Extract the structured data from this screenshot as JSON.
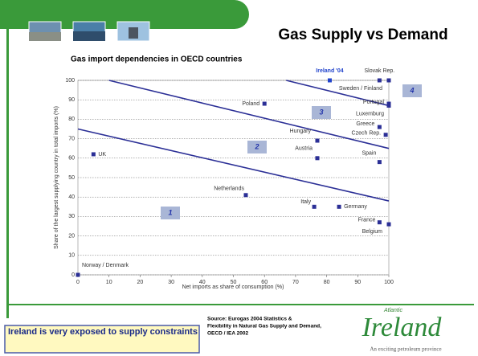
{
  "title": "Gas Supply vs Demand",
  "chart_data": {
    "type": "scatter",
    "title": "Gas import dependencies in OECD countries",
    "x_label": "Net imports as share of consumption (%)",
    "y_label": "Share of the largest supplying country in total imports (%)",
    "xlim": [
      0,
      100
    ],
    "ylim": [
      0,
      100
    ],
    "xticks": [
      0,
      10,
      20,
      30,
      40,
      50,
      60,
      70,
      80,
      90,
      100
    ],
    "yticks": [
      0,
      10,
      20,
      30,
      40,
      50,
      60,
      70,
      80,
      90,
      100
    ],
    "grid": true,
    "color": "#2b2f96",
    "highlight_color": "#2244cc",
    "line_color": "#2b2f96",
    "points": [
      {
        "label": "Norway / Denmark",
        "x": 0,
        "y": 0
      },
      {
        "label": "UK",
        "x": 5,
        "y": 62
      },
      {
        "label": "Poland",
        "x": 60,
        "y": 88
      },
      {
        "label": "Hungary",
        "x": 77,
        "y": 69
      },
      {
        "label": "Austria",
        "x": 77,
        "y": 60
      },
      {
        "label": "Netherlands",
        "x": 54,
        "y": 41
      },
      {
        "label": "Italy",
        "x": 76,
        "y": 35
      },
      {
        "label": "Germany",
        "x": 84,
        "y": 35
      },
      {
        "label": "Ireland '04",
        "x": 81,
        "y": 100
      },
      {
        "label": "Slovak Rep.",
        "x": 97,
        "y": 100
      },
      {
        "label": "Sweden / Finland",
        "x": 100,
        "y": 100
      },
      {
        "label": "Portugal",
        "x": 100,
        "y": 88
      },
      {
        "label": "Luxemburg",
        "x": 100,
        "y": 87
      },
      {
        "label": "Greece",
        "x": 97,
        "y": 76
      },
      {
        "label": "Czech Rep.",
        "x": 99,
        "y": 72
      },
      {
        "label": "Spain",
        "x": 97,
        "y": 58
      },
      {
        "label": "France",
        "x": 97,
        "y": 27
      },
      {
        "label": "Belgium",
        "x": 100,
        "y": 26
      }
    ],
    "highlight": 8,
    "lines": [
      {
        "x": [
          0,
          100
        ],
        "y": [
          75,
          38
        ]
      },
      {
        "x": [
          10,
          100
        ],
        "y": [
          100,
          65
        ]
      },
      {
        "x": [
          67,
          100
        ],
        "y": [
          100,
          87
        ]
      }
    ],
    "regions": [
      "1",
      "2",
      "3",
      "4"
    ]
  },
  "callout": "Ireland is very exposed to supply constraints",
  "source": [
    "Source: Eurogas 2004 Statistics &",
    "Flexibility in Natural Gas Supply and Demand,",
    "OECD / IEA 2002"
  ],
  "logo": {
    "top": "Atlantic",
    "name": "Ireland",
    "tagline": "An exciting petroleum province"
  }
}
